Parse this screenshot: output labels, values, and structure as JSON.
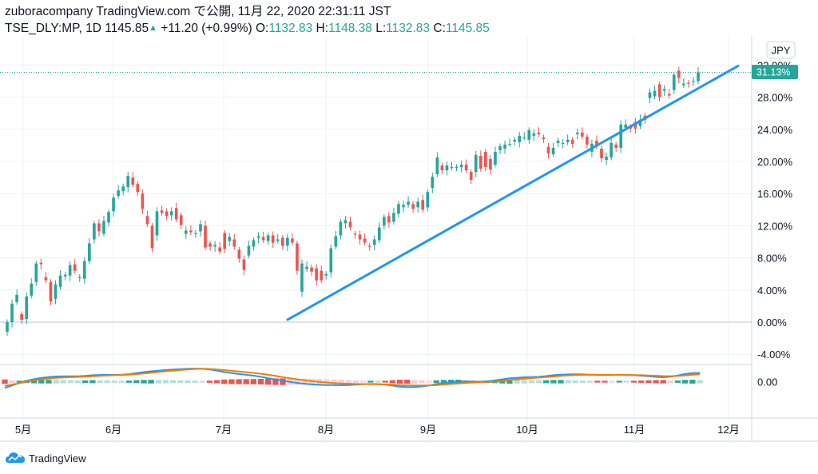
{
  "header": {
    "publisher": "zuboracompany TradingView.com で公開, 11月 22, 2020 22:31:11 JST",
    "symbol": "TSE_DLY:MP, 1D",
    "last": "1145.85",
    "change": "+11.20 (+0.99%)",
    "o_label": "O:",
    "o_value": "1132.83",
    "h_label": "H:",
    "h_value": "1148.38",
    "l_label": "L:",
    "l_value": "1132.83",
    "c_label": "C:",
    "c_value": "1145.85"
  },
  "currency_badge": "JPY",
  "last_value_label": "31.13%",
  "logo_text": "TradingView",
  "colors": {
    "up": "#26a69a",
    "down": "#ef5350",
    "trendline": "#2196f3",
    "signal": "#f57c00",
    "hist_up_strong": "#26a69a",
    "hist_up_weak": "#b2dfdb",
    "hist_down_strong": "#ef5350",
    "hist_down_weak": "#ffcdd2",
    "grid": "#eef0f3",
    "axis_text": "#131722"
  },
  "chart_data": [
    {
      "type": "candlestick",
      "units": "percent change",
      "y_ticks": [
        "-4.00%",
        "0.00%",
        "4.00%",
        "8.00%",
        "12.00%",
        "16.00%",
        "20.00%",
        "24.00%",
        "28.00%",
        "32.00%"
      ],
      "ylim": [
        -5,
        33
      ],
      "x_ticks": [
        "5月",
        "6月",
        "7月",
        "8月",
        "9月",
        "10月",
        "11月",
        "12月"
      ],
      "grid": true,
      "candles": [
        [
          -1.2,
          0.0
        ],
        [
          0.0,
          2.3
        ],
        [
          2.5,
          3.4
        ],
        [
          1.0,
          0.3
        ],
        [
          0.4,
          3.2
        ],
        [
          3.3,
          4.8
        ],
        [
          5.0,
          7.3
        ],
        [
          7.4,
          7.2
        ],
        [
          5.6,
          5.2
        ],
        [
          5.0,
          2.6
        ],
        [
          2.9,
          4.7
        ],
        [
          4.4,
          5.8
        ],
        [
          5.7,
          5.9
        ],
        [
          5.8,
          7.1
        ],
        [
          7.2,
          6.4
        ],
        [
          5.5,
          5.6
        ],
        [
          5.4,
          7.6
        ],
        [
          7.6,
          9.8
        ],
        [
          10.3,
          12.3
        ],
        [
          12.3,
          11.3
        ],
        [
          11.0,
          12.6
        ],
        [
          12.4,
          13.7
        ],
        [
          13.8,
          15.5
        ],
        [
          15.7,
          16.4
        ],
        [
          16.3,
          16.9
        ],
        [
          16.8,
          18.2
        ],
        [
          18.0,
          17.1
        ],
        [
          17.2,
          16.2
        ],
        [
          16.0,
          14.1
        ],
        [
          13.2,
          12.2
        ],
        [
          12.0,
          9.2
        ],
        [
          10.8,
          13.8
        ],
        [
          13.9,
          13.6
        ],
        [
          13.8,
          13.2
        ],
        [
          13.3,
          13.8
        ],
        [
          14.2,
          12.8
        ],
        [
          13.3,
          12.1
        ],
        [
          11.0,
          11.4
        ],
        [
          11.4,
          11.2
        ],
        [
          11.0,
          11.1
        ],
        [
          11.3,
          12.2
        ],
        [
          12.0,
          9.3
        ],
        [
          9.8,
          9.4
        ],
        [
          9.4,
          9.6
        ],
        [
          9.3,
          8.8
        ],
        [
          11.1,
          9.1
        ],
        [
          10.1,
          10.6
        ],
        [
          10.3,
          9.4
        ],
        [
          9.0,
          7.9
        ],
        [
          7.8,
          6.5
        ],
        [
          8.3,
          9.5
        ],
        [
          9.4,
          10.2
        ],
        [
          10.5,
          10.7
        ],
        [
          10.6,
          10.2
        ],
        [
          10.1,
          10.8
        ],
        [
          10.8,
          9.9
        ],
        [
          10.1,
          10.3
        ],
        [
          10.5,
          9.5
        ],
        [
          9.5,
          10.5
        ],
        [
          10.4,
          9.9
        ],
        [
          9.8,
          6.4
        ],
        [
          3.8,
          7.3
        ],
        [
          6.6,
          6.9
        ],
        [
          6.8,
          6.3
        ],
        [
          6.7,
          5.2
        ],
        [
          6.4,
          5.2
        ],
        [
          5.8,
          6.0
        ],
        [
          6.2,
          9.2
        ],
        [
          9.4,
          10.7
        ],
        [
          10.8,
          12.5
        ],
        [
          12.3,
          12.7
        ],
        [
          12.5,
          11.8
        ],
        [
          11.0,
          10.9
        ],
        [
          10.9,
          10.3
        ],
        [
          10.4,
          9.9
        ],
        [
          9.5,
          9.4
        ],
        [
          9.6,
          10.3
        ],
        [
          10.2,
          11.8
        ],
        [
          12.0,
          13.1
        ],
        [
          13.2,
          12.4
        ],
        [
          12.5,
          13.6
        ],
        [
          13.5,
          14.7
        ],
        [
          14.3,
          14.6
        ],
        [
          14.6,
          15.0
        ],
        [
          14.7,
          14.1
        ],
        [
          14.3,
          15.0
        ],
        [
          15.2,
          14.0
        ],
        [
          14.3,
          16.2
        ],
        [
          16.7,
          18.1
        ],
        [
          18.4,
          20.5
        ],
        [
          19.5,
          18.9
        ],
        [
          18.9,
          19.5
        ],
        [
          19.2,
          19.3
        ],
        [
          19.3,
          19.3
        ],
        [
          19.3,
          19.6
        ],
        [
          19.6,
          18.9
        ],
        [
          18.7,
          17.7
        ],
        [
          18.7,
          20.8
        ],
        [
          20.7,
          19.1
        ],
        [
          21.2,
          19.3
        ],
        [
          20.3,
          19.0
        ],
        [
          19.6,
          21.2
        ],
        [
          21.4,
          21.9
        ],
        [
          21.6,
          22.1
        ],
        [
          22.2,
          22.2
        ],
        [
          22.5,
          22.7
        ],
        [
          22.4,
          23.2
        ],
        [
          23.0,
          23.0
        ],
        [
          22.7,
          23.9
        ],
        [
          23.2,
          23.5
        ],
        [
          23.6,
          23.4
        ],
        [
          23.0,
          22.8
        ],
        [
          21.8,
          21.0
        ],
        [
          20.9,
          21.7
        ],
        [
          22.3,
          22.6
        ],
        [
          22.3,
          22.3
        ],
        [
          22.4,
          22.7
        ],
        [
          22.7,
          22.2
        ],
        [
          23.4,
          23.6
        ],
        [
          23.6,
          23.1
        ],
        [
          23.1,
          22.1
        ],
        [
          21.2,
          22.2
        ],
        [
          22.6,
          21.9
        ],
        [
          21.6,
          20.4
        ],
        [
          20.2,
          20.6
        ],
        [
          20.5,
          22.3
        ],
        [
          22.1,
          21.7
        ],
        [
          21.7,
          24.6
        ],
        [
          24.2,
          24.6
        ],
        [
          24.3,
          24.1
        ],
        [
          24.9,
          24.1
        ],
        [
          24.4,
          25.2
        ],
        [
          25.7,
          25.2
        ],
        [
          27.9,
          28.6
        ],
        [
          28.1,
          28.8
        ],
        [
          29.6,
          28.0
        ],
        [
          28.8,
          29.0
        ],
        [
          28.4,
          28.2
        ],
        [
          28.9,
          30.8
        ],
        [
          31.3,
          30.4
        ],
        [
          29.5,
          29.7
        ],
        [
          29.8,
          29.7
        ],
        [
          30.0,
          30.0
        ],
        [
          30.0,
          31.1
        ]
      ]
    },
    {
      "type": "line",
      "name": "trendline",
      "x": [
        "7月中旬",
        "12月初"
      ],
      "y": [
        0.3,
        31.9
      ]
    },
    {
      "type": "macd",
      "y_ticks": [
        "0.00"
      ],
      "macd": [
        -1.5,
        -0.9,
        -0.3,
        0.2,
        0.6,
        0.9,
        1.1,
        1.25,
        1.3,
        1.28,
        1.3,
        1.4,
        1.55,
        1.62,
        1.65,
        1.64,
        1.7,
        1.8,
        2.05,
        2.3,
        2.5,
        2.65,
        2.8,
        2.9,
        3.0,
        3.1,
        3.15,
        3.1,
        2.95,
        2.65,
        2.3,
        2.05,
        1.85,
        1.65,
        1.45,
        1.2,
        0.85,
        0.5,
        0.2,
        -0.05,
        -0.3,
        -0.5,
        -0.65,
        -0.75,
        -0.8,
        -0.82,
        -0.85,
        -0.8,
        -0.7,
        -0.6,
        -0.55,
        -0.58,
        -0.7,
        -0.95,
        -1.2,
        -1.3,
        -1.28,
        -1.15,
        -0.9,
        -0.6,
        -0.35,
        -0.15,
        0.0,
        0.05,
        0.0,
        -0.02,
        0.1,
        0.3,
        0.55,
        0.8,
        0.95,
        1.05,
        1.12,
        1.18,
        1.35,
        1.55,
        1.7,
        1.75,
        1.78,
        1.75,
        1.7,
        1.62,
        1.6,
        1.62,
        1.65,
        1.62,
        1.55,
        1.45,
        1.3,
        1.15,
        1.05,
        1.2,
        1.5,
        1.85,
        2.05,
        2.1
      ],
      "signal": [
        -1.0,
        -0.7,
        -0.35,
        0.0,
        0.3,
        0.55,
        0.75,
        0.9,
        1.0,
        1.08,
        1.15,
        1.22,
        1.3,
        1.4,
        1.48,
        1.55,
        1.62,
        1.7,
        1.82,
        1.98,
        2.15,
        2.32,
        2.5,
        2.65,
        2.8,
        2.95,
        3.05,
        3.1,
        3.05,
        2.92,
        2.78,
        2.62,
        2.45,
        2.28,
        2.1,
        1.9,
        1.65,
        1.38,
        1.1,
        0.82,
        0.55,
        0.32,
        0.12,
        -0.05,
        -0.2,
        -0.32,
        -0.42,
        -0.5,
        -0.55,
        -0.58,
        -0.6,
        -0.62,
        -0.66,
        -0.72,
        -0.8,
        -0.88,
        -0.92,
        -0.92,
        -0.88,
        -0.8,
        -0.68,
        -0.55,
        -0.42,
        -0.3,
        -0.2,
        -0.12,
        -0.04,
        0.06,
        0.2,
        0.38,
        0.56,
        0.72,
        0.86,
        0.98,
        1.1,
        1.24,
        1.38,
        1.5,
        1.58,
        1.64,
        1.66,
        1.66,
        1.64,
        1.63,
        1.63,
        1.62,
        1.6,
        1.56,
        1.5,
        1.42,
        1.35,
        1.33,
        1.38,
        1.5,
        1.65,
        1.8
      ]
    }
  ]
}
